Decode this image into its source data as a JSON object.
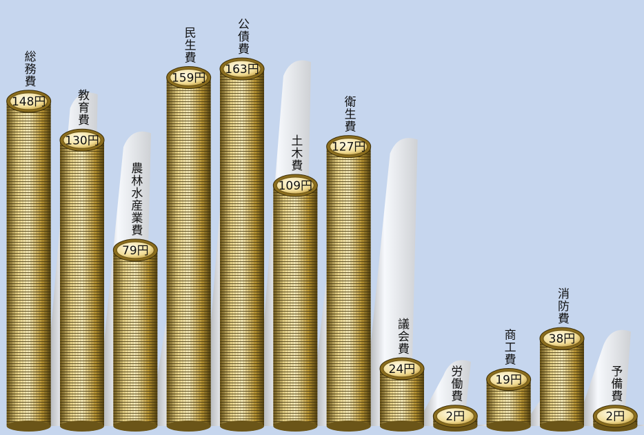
{
  "chart_data": {
    "type": "bar",
    "categories": [
      "総務費",
      "教育費",
      "農林水産業費",
      "民生費",
      "公債費",
      "土木費",
      "衛生費",
      "議会費",
      "労働費",
      "商工費",
      "消防費",
      "予備費"
    ],
    "values": [
      148,
      130,
      79,
      159,
      163,
      109,
      127,
      24,
      2,
      19,
      38,
      2
    ],
    "value_labels": [
      "148円",
      "130円",
      "79円",
      "159円",
      "163円",
      "109円",
      "127円",
      "24円",
      "2円",
      "19円",
      "38円",
      "2円"
    ],
    "color": "#c9a64a"
  }
}
